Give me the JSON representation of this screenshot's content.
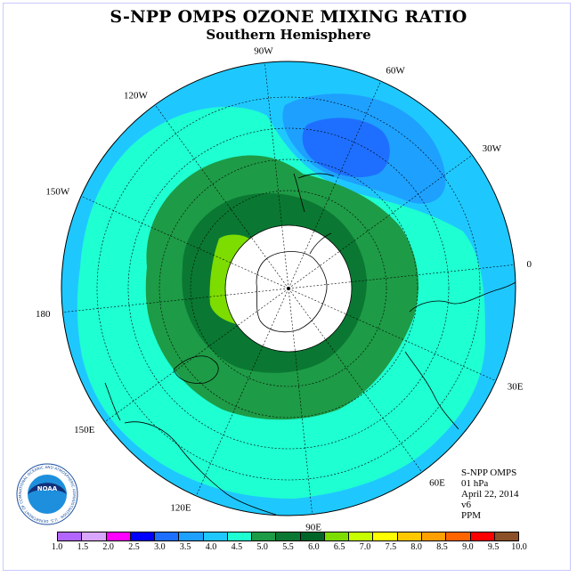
{
  "title": "S-NPP OMPS OZONE MIXING RATIO",
  "subtitle": "Southern Hemisphere",
  "longitude_labels": [
    "90W",
    "60W",
    "30W",
    "0",
    "30E",
    "60E",
    "90E",
    "120E",
    "150E",
    "180",
    "150W",
    "120W"
  ],
  "info": {
    "instrument": "S-NPP OMPS",
    "level": "01 hPa",
    "date": "April 22, 2014",
    "version": "v6",
    "units": "PPM"
  },
  "legend": {
    "ticks": [
      "1.0",
      "1.5",
      "2.0",
      "2.5",
      "3.0",
      "3.5",
      "4.0",
      "4.5",
      "5.0",
      "5.5",
      "6.0",
      "6.5",
      "7.0",
      "7.5",
      "8.0",
      "8.5",
      "9.0",
      "9.5",
      "10.0"
    ],
    "colors": [
      "#b266ff",
      "#d9a6ff",
      "#ff00ff",
      "#0000ff",
      "#1e6fff",
      "#1ea0ff",
      "#1ec8ff",
      "#1effd2",
      "#1e9b46",
      "#0a7832",
      "#006428",
      "#7ddc00",
      "#c8ff00",
      "#ffff00",
      "#ffc800",
      "#ffa000",
      "#ff6400",
      "#ff0000",
      "#8c5028"
    ]
  },
  "logo": {
    "text": "NOAA",
    "ring_text": "NATIONAL OCEANIC AND ATMOSPHERIC ADMINISTRATION · U.S. DEPARTMENT OF COMMERCE"
  },
  "colors": {
    "background_field": "#1ec8ff",
    "band_4_5": "#1effd2",
    "band_5_0": "#1e9b46",
    "band_5_5": "#0a7832",
    "band_6_5": "#7ddc00",
    "low_3_5": "#1ea0ff",
    "low_3_0": "#1e6fff"
  }
}
